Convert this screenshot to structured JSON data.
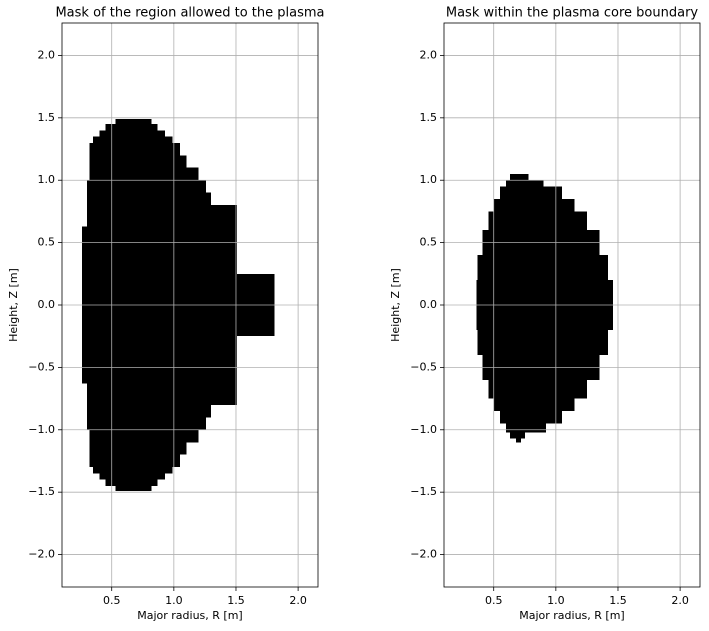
{
  "chart_data": [
    {
      "type": "mask",
      "title": "Mask of the region allowed to the plasma",
      "xlabel": "Major radius, R [m]",
      "ylabel": "Height, Z [m]",
      "color": "#000000",
      "grid": true,
      "xlim": [
        0.1,
        2.16
      ],
      "ylim": [
        -2.26,
        2.26
      ],
      "xticks": [
        0.5,
        {
          "value": 1,
          "label": "1.0"
        },
        1.5,
        {
          "value": 2,
          "label": "2.0"
        }
      ],
      "yticks": [
        {
          "value": -2,
          "label": "−2.0"
        },
        {
          "value": -1.5,
          "label": "−1.5"
        },
        {
          "value": -1,
          "label": "−1.0"
        },
        {
          "value": -0.5,
          "label": "−0.5"
        },
        {
          "value": 0,
          "label": "0.0"
        },
        0.5,
        {
          "value": 1,
          "label": "1.0"
        },
        1.5,
        {
          "value": 2,
          "label": "2.0"
        }
      ],
      "regions": [
        [
          0.53,
          0.82,
          1.45,
          1.49
        ],
        [
          0.45,
          0.87,
          1.4,
          1.45
        ],
        [
          0.4,
          0.93,
          1.35,
          1.4
        ],
        [
          0.35,
          0.99,
          1.3,
          1.35
        ],
        [
          0.32,
          1.05,
          1.2,
          1.3
        ],
        [
          0.32,
          1.1,
          1.1,
          1.2
        ],
        [
          0.32,
          1.2,
          1.0,
          1.1
        ],
        [
          0.3,
          1.26,
          0.9,
          1.0
        ],
        [
          0.3,
          1.3,
          0.8,
          0.9
        ],
        [
          0.3,
          1.51,
          0.63,
          0.8
        ],
        [
          0.26,
          1.51,
          0.25,
          0.63
        ],
        [
          0.26,
          1.81,
          -0.25,
          0.25
        ],
        [
          0.26,
          1.51,
          -0.63,
          -0.25
        ],
        [
          0.3,
          1.51,
          -0.8,
          -0.63
        ],
        [
          0.3,
          1.3,
          -0.9,
          -0.8
        ],
        [
          0.3,
          1.26,
          -1.0,
          -0.9
        ],
        [
          0.32,
          1.2,
          -1.1,
          -1.0
        ],
        [
          0.32,
          1.1,
          -1.2,
          -1.1
        ],
        [
          0.32,
          1.05,
          -1.3,
          -1.2
        ],
        [
          0.35,
          0.99,
          -1.35,
          -1.3
        ],
        [
          0.4,
          0.93,
          -1.4,
          -1.35
        ],
        [
          0.45,
          0.87,
          -1.45,
          -1.4
        ],
        [
          0.53,
          0.82,
          -1.49,
          -1.45
        ]
      ]
    },
    {
      "type": "mask",
      "title": "Mask within the plasma core boundary",
      "xlabel": "Major radius, R [m]",
      "ylabel": "Height, Z [m]",
      "color": "#000000",
      "grid": true,
      "xlim": [
        0.1,
        2.16
      ],
      "ylim": [
        -2.26,
        2.26
      ],
      "xticks": [
        0.5,
        {
          "value": 1,
          "label": "1.0"
        },
        1.5,
        {
          "value": 2,
          "label": "2.0"
        }
      ],
      "yticks": [
        {
          "value": -2,
          "label": "−2.0"
        },
        {
          "value": -1.5,
          "label": "−1.5"
        },
        {
          "value": -1,
          "label": "−1.0"
        },
        {
          "value": -0.5,
          "label": "−0.5"
        },
        {
          "value": 0,
          "label": "0.0"
        },
        0.5,
        {
          "value": 1,
          "label": "1.0"
        },
        1.5,
        {
          "value": 2,
          "label": "2.0"
        }
      ],
      "regions": [
        [
          0.63,
          0.78,
          1.0,
          1.05
        ],
        [
          0.6,
          0.9,
          0.95,
          1.0
        ],
        [
          0.55,
          1.05,
          0.85,
          0.95
        ],
        [
          0.5,
          1.15,
          0.75,
          0.85
        ],
        [
          0.46,
          1.25,
          0.6,
          0.75
        ],
        [
          0.41,
          1.35,
          0.4,
          0.6
        ],
        [
          0.37,
          1.42,
          0.2,
          0.4
        ],
        [
          0.36,
          1.46,
          -0.2,
          0.2
        ],
        [
          0.37,
          1.42,
          -0.4,
          -0.2
        ],
        [
          0.41,
          1.35,
          -0.6,
          -0.4
        ],
        [
          0.46,
          1.25,
          -0.75,
          -0.6
        ],
        [
          0.5,
          1.15,
          -0.85,
          -0.75
        ],
        [
          0.55,
          1.05,
          -0.95,
          -0.85
        ],
        [
          0.6,
          0.92,
          -1.02,
          -0.95
        ],
        [
          0.63,
          0.75,
          -1.07,
          -1.02
        ],
        [
          0.68,
          0.72,
          -1.1,
          -1.07
        ]
      ]
    }
  ]
}
